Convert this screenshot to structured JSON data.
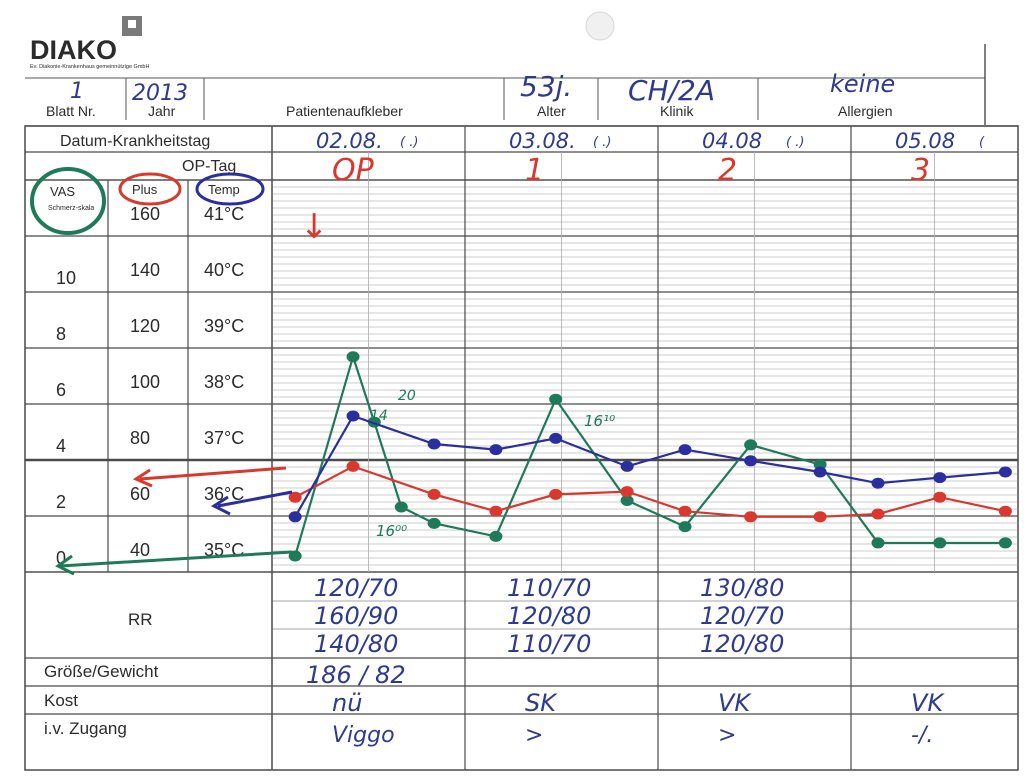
{
  "header": {
    "logo": "DIAKO",
    "logo_subtitle": "Ev. Diakonie-Krankenhaus gemeinnützige GmbH",
    "blatt_label": "Blatt Nr.",
    "blatt_value": "1",
    "jahr_label": "Jahr",
    "jahr_value": "2013",
    "patient_label": "Patientenaufkleber",
    "alter_label": "Alter",
    "alter_value": "53j.",
    "klinik_label": "Klinik",
    "klinik_value": "CH/2A",
    "allergien_label": "Allergien",
    "allergien_value": "keine"
  },
  "grid": {
    "datum_label": "Datum-Krankheitstag",
    "optag_label": "OP-Tag",
    "vas_label": "VAS",
    "vas_sub": "Schmerz-skala",
    "puls_label": "Plus",
    "temp_label": "Temp",
    "rows": [
      {
        "vas": "",
        "puls": "160",
        "temp": "41°C"
      },
      {
        "vas": "10",
        "puls": "140",
        "temp": "40°C"
      },
      {
        "vas": "8",
        "puls": "120",
        "temp": "39°C"
      },
      {
        "vas": "6",
        "puls": "100",
        "temp": "38°C"
      },
      {
        "vas": "4",
        "puls": "80",
        "temp": "37°C"
      },
      {
        "vas": "2",
        "puls": "60",
        "temp": "36°C"
      },
      {
        "vas": "0",
        "puls": "40",
        "temp": "35°C"
      }
    ],
    "days": [
      {
        "date": "02.08.",
        "paren": "( .)",
        "postop": "OP"
      },
      {
        "date": "03.08.",
        "paren": "( .)",
        "postop": "1"
      },
      {
        "date": "04.08",
        "paren": "( .)",
        "postop": "2"
      },
      {
        "date": "05.08",
        "paren": "(",
        "postop": "3"
      }
    ]
  },
  "annotations": {
    "arrow_glyph": "↓",
    "note_20": "20",
    "note_14": "14",
    "note_1600": "16⁰⁰",
    "note_1610": "16¹⁰"
  },
  "rr": {
    "label": "RR",
    "days": [
      [
        "120/70",
        "160/90",
        "140/80"
      ],
      [
        "110/70",
        "120/80",
        "110/70"
      ],
      [
        "130/80",
        "120/70",
        "120/80"
      ],
      []
    ]
  },
  "bottom": {
    "groesse_label": "Größe/Gewicht",
    "groesse_value": "186 / 82",
    "kost_label": "Kost",
    "kost_values": [
      "nü",
      "SK",
      "VK",
      "VK"
    ],
    "zugang_label": "i.v. Zugang",
    "zugang_values": [
      "Viggo",
      ">",
      ">",
      "-/."
    ]
  },
  "chart_data": {
    "type": "line",
    "xlabel": "",
    "ylabel": "",
    "x_domain": [
      0,
      4
    ],
    "series": [
      {
        "name": "VAS",
        "color": "#1e7a58",
        "points": [
          [
            0.12,
            0
          ],
          [
            0.42,
            6.1
          ],
          [
            0.53,
            4.1
          ],
          [
            0.67,
            1.5
          ],
          [
            0.84,
            1.0
          ],
          [
            1.16,
            0.6
          ],
          [
            1.47,
            4.8
          ],
          [
            1.84,
            1.7
          ],
          [
            2.14,
            0.9
          ],
          [
            2.48,
            3.4
          ],
          [
            2.84,
            2.8
          ],
          [
            3.14,
            0.4
          ],
          [
            3.46,
            0.4
          ],
          [
            3.8,
            0.4
          ]
        ]
      },
      {
        "name": "Puls",
        "color": "#d9382e",
        "points": [
          [
            0.12,
            61
          ],
          [
            0.42,
            72
          ],
          [
            0.84,
            62
          ],
          [
            1.16,
            56
          ],
          [
            1.47,
            62
          ],
          [
            1.84,
            63
          ],
          [
            2.14,
            56
          ],
          [
            2.48,
            54
          ],
          [
            2.84,
            54
          ],
          [
            3.14,
            55
          ],
          [
            3.46,
            61
          ],
          [
            3.8,
            56
          ]
        ]
      },
      {
        "name": "Temp",
        "color": "#2b2f9e",
        "points": [
          [
            0.12,
            35.7
          ],
          [
            0.42,
            37.5
          ],
          [
            0.84,
            37.0
          ],
          [
            1.16,
            36.9
          ],
          [
            1.47,
            37.1
          ],
          [
            1.84,
            36.6
          ],
          [
            2.14,
            36.9
          ],
          [
            2.48,
            36.7
          ],
          [
            2.84,
            36.5
          ],
          [
            3.14,
            36.3
          ],
          [
            3.46,
            36.4
          ],
          [
            3.8,
            36.5
          ]
        ]
      }
    ]
  }
}
